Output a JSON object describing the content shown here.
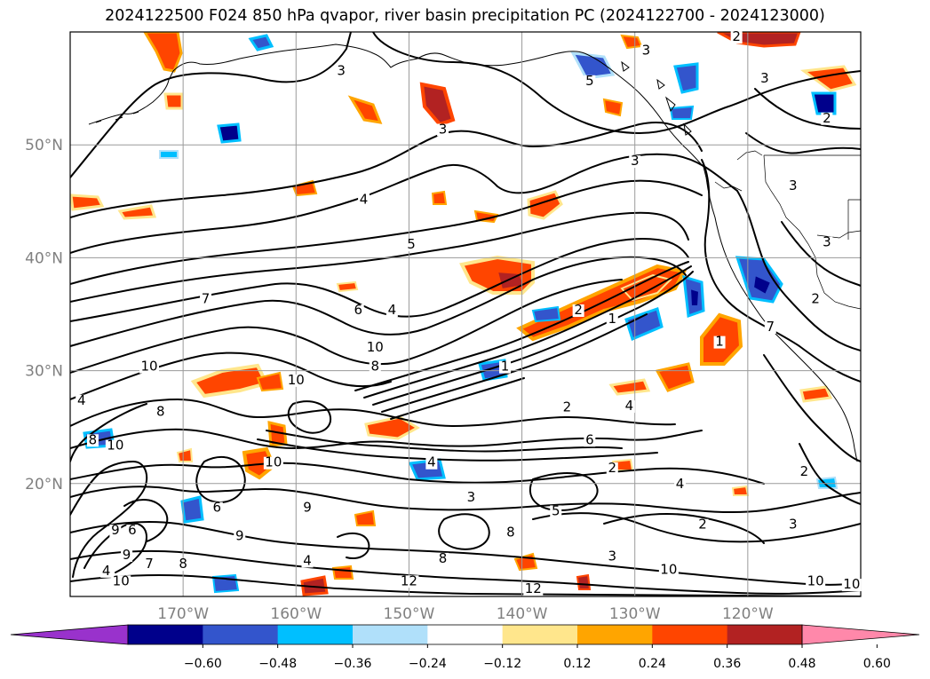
{
  "title": "2024122500 F024 850 hPa qvapor, river basin precipitation PC (2024122700 - 2024123000)",
  "map": {
    "lon_range": [
      -180,
      -110
    ],
    "lat_range": [
      10,
      60
    ],
    "lat_labels": [
      {
        "lat": 50,
        "text": "50°N"
      },
      {
        "lat": 40,
        "text": "40°N"
      },
      {
        "lat": 30,
        "text": "30°N"
      },
      {
        "lat": 20,
        "text": "20°N"
      }
    ],
    "lon_labels": [
      {
        "lon": -170,
        "text": "170°W"
      },
      {
        "lon": -160,
        "text": "160°W"
      },
      {
        "lon": -150,
        "text": "150°W"
      },
      {
        "lon": -140,
        "text": "140°W"
      },
      {
        "lon": -130,
        "text": "130°W"
      },
      {
        "lon": -120,
        "text": "120°W"
      }
    ],
    "contour_labels": [
      {
        "lon": -156.0,
        "lat": 56.2,
        "text": "3"
      },
      {
        "lon": -147.0,
        "lat": 51.0,
        "text": "3"
      },
      {
        "lon": -134.0,
        "lat": 55.3,
        "text": "5"
      },
      {
        "lon": -130.0,
        "lat": 48.2,
        "text": "3"
      },
      {
        "lon": -129.0,
        "lat": 58.0,
        "text": "3"
      },
      {
        "lon": -121.0,
        "lat": 59.2,
        "text": "2"
      },
      {
        "lon": -154.0,
        "lat": 44.8,
        "text": "4"
      },
      {
        "lon": -149.8,
        "lat": 40.8,
        "text": "5"
      },
      {
        "lon": -168.0,
        "lat": 36.0,
        "text": "7"
      },
      {
        "lon": -154.5,
        "lat": 35.0,
        "text": "6"
      },
      {
        "lon": -151.5,
        "lat": 35.0,
        "text": "4"
      },
      {
        "lon": -153.0,
        "lat": 31.7,
        "text": "10"
      },
      {
        "lon": -173.0,
        "lat": 30.0,
        "text": "10"
      },
      {
        "lon": -160.0,
        "lat": 28.8,
        "text": "10"
      },
      {
        "lon": -153.0,
        "lat": 30.0,
        "text": "8"
      },
      {
        "lon": -141.5,
        "lat": 30.0,
        "text": "1"
      },
      {
        "lon": -135.0,
        "lat": 35.0,
        "text": "2"
      },
      {
        "lon": -132.0,
        "lat": 34.2,
        "text": "1"
      },
      {
        "lon": -122.5,
        "lat": 32.2,
        "text": "1"
      },
      {
        "lon": -136.0,
        "lat": 26.4,
        "text": "2"
      },
      {
        "lon": -130.5,
        "lat": 26.5,
        "text": "4"
      },
      {
        "lon": -134.0,
        "lat": 23.5,
        "text": "6"
      },
      {
        "lon": -132.0,
        "lat": 21.0,
        "text": "2"
      },
      {
        "lon": -148.0,
        "lat": 21.5,
        "text": "4"
      },
      {
        "lon": -144.5,
        "lat": 18.4,
        "text": "3"
      },
      {
        "lon": -126.0,
        "lat": 19.6,
        "text": "4"
      },
      {
        "lon": -124.0,
        "lat": 16.0,
        "text": "2"
      },
      {
        "lon": -116.0,
        "lat": 16.0,
        "text": "3"
      },
      {
        "lon": -137.0,
        "lat": 17.2,
        "text": "5"
      },
      {
        "lon": -141.0,
        "lat": 15.3,
        "text": "8"
      },
      {
        "lon": -132.0,
        "lat": 13.2,
        "text": "3"
      },
      {
        "lon": -127.0,
        "lat": 12.0,
        "text": "10"
      },
      {
        "lon": -114.0,
        "lat": 11.0,
        "text": "10"
      },
      {
        "lon": -110.8,
        "lat": 10.7,
        "text": "10"
      },
      {
        "lon": -147.0,
        "lat": 13.0,
        "text": "8"
      },
      {
        "lon": -150.0,
        "lat": 11.0,
        "text": "12"
      },
      {
        "lon": -139.0,
        "lat": 10.3,
        "text": "12"
      },
      {
        "lon": -175.0,
        "lat": 13.3,
        "text": "9"
      },
      {
        "lon": -175.5,
        "lat": 11.0,
        "text": "10"
      },
      {
        "lon": -176.8,
        "lat": 11.9,
        "text": "4"
      },
      {
        "lon": -173.0,
        "lat": 12.5,
        "text": "7"
      },
      {
        "lon": -176.0,
        "lat": 15.5,
        "text": "9"
      },
      {
        "lon": -174.5,
        "lat": 15.5,
        "text": "6"
      },
      {
        "lon": -178.0,
        "lat": 23.5,
        "text": "8"
      },
      {
        "lon": -176.0,
        "lat": 23.0,
        "text": "10"
      },
      {
        "lon": -179.0,
        "lat": 27.0,
        "text": "4"
      },
      {
        "lon": -172.0,
        "lat": 26.0,
        "text": "8"
      },
      {
        "lon": -162.0,
        "lat": 21.5,
        "text": "10"
      },
      {
        "lon": -167.0,
        "lat": 17.5,
        "text": "6"
      },
      {
        "lon": -159.0,
        "lat": 17.5,
        "text": "9"
      },
      {
        "lon": -165.0,
        "lat": 15.0,
        "text": "9"
      },
      {
        "lon": -170.0,
        "lat": 12.5,
        "text": "8"
      },
      {
        "lon": -159.0,
        "lat": 12.8,
        "text": "4"
      },
      {
        "lon": -115.0,
        "lat": 20.7,
        "text": "2"
      },
      {
        "lon": -118.0,
        "lat": 33.5,
        "text": "7"
      },
      {
        "lon": -114.0,
        "lat": 36.0,
        "text": "2"
      },
      {
        "lon": -113.0,
        "lat": 41.0,
        "text": "3"
      },
      {
        "lon": -116.0,
        "lat": 46.0,
        "text": "3"
      },
      {
        "lon": -113.0,
        "lat": 52.0,
        "text": "2"
      },
      {
        "lon": -118.5,
        "lat": 55.5,
        "text": "3"
      }
    ]
  },
  "colorbar": {
    "colors": [
      "#9932cc",
      "#00008b",
      "#3355cc",
      "#00bfff",
      "#b0e0fa",
      "#ffffff",
      "#ffe68c",
      "#ffa500",
      "#ff4500",
      "#b22222",
      "#ff88aa"
    ],
    "tick_labels": [
      "−0.60",
      "−0.48",
      "−0.36",
      "−0.24",
      "−0.12",
      "0.12",
      "0.24",
      "0.36",
      "0.48",
      "0.60"
    ]
  }
}
